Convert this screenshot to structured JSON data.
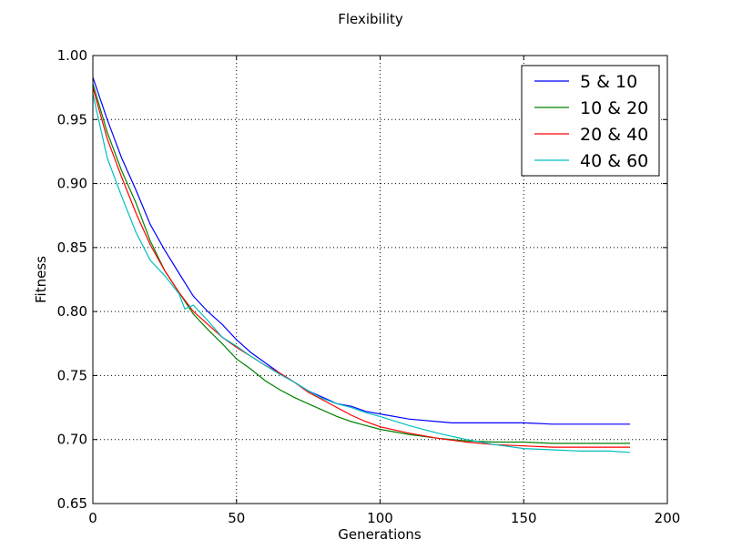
{
  "chart_data": {
    "type": "line",
    "title": "Flexibility",
    "xlabel": "Generations",
    "ylabel": "Fitness",
    "xlim": [
      0,
      200
    ],
    "ylim": [
      0.65,
      1.0
    ],
    "xticks": [
      0,
      50,
      100,
      150,
      200
    ],
    "xtick_labels": [
      "0",
      "50",
      "100",
      "150",
      "200"
    ],
    "yticks": [
      0.65,
      0.7,
      0.75,
      0.8,
      0.85,
      0.9,
      0.95,
      1.0
    ],
    "ytick_labels": [
      "0.65",
      "0.70",
      "0.75",
      "0.80",
      "0.85",
      "0.90",
      "0.95",
      "1.00"
    ],
    "grid": true,
    "legend_position": "upper right",
    "series": [
      {
        "name": "5 & 10",
        "color": "#0000ff",
        "x": [
          0,
          5,
          10,
          15,
          20,
          25,
          30,
          35,
          40,
          45,
          50,
          55,
          60,
          65,
          70,
          75,
          80,
          85,
          90,
          95,
          100,
          110,
          120,
          125,
          130,
          140,
          150,
          160,
          170,
          180,
          187
        ],
        "y": [
          0.983,
          0.95,
          0.92,
          0.895,
          0.868,
          0.848,
          0.83,
          0.812,
          0.8,
          0.79,
          0.778,
          0.768,
          0.76,
          0.752,
          0.745,
          0.738,
          0.733,
          0.728,
          0.726,
          0.722,
          0.72,
          0.716,
          0.714,
          0.713,
          0.713,
          0.713,
          0.713,
          0.712,
          0.712,
          0.712,
          0.712
        ]
      },
      {
        "name": "10 & 20",
        "color": "#008000",
        "x": [
          0,
          5,
          10,
          15,
          20,
          25,
          30,
          35,
          40,
          45,
          50,
          55,
          60,
          65,
          70,
          75,
          80,
          85,
          90,
          95,
          100,
          110,
          120,
          130,
          140,
          150,
          160,
          170,
          180,
          187
        ],
        "y": [
          0.978,
          0.94,
          0.91,
          0.885,
          0.855,
          0.832,
          0.815,
          0.798,
          0.786,
          0.775,
          0.763,
          0.755,
          0.746,
          0.739,
          0.733,
          0.728,
          0.723,
          0.718,
          0.714,
          0.711,
          0.708,
          0.704,
          0.701,
          0.699,
          0.698,
          0.698,
          0.697,
          0.697,
          0.697,
          0.697
        ]
      },
      {
        "name": "20 & 40",
        "color": "#ff0000",
        "x": [
          0,
          5,
          10,
          15,
          20,
          25,
          30,
          35,
          40,
          45,
          50,
          55,
          60,
          65,
          70,
          75,
          80,
          85,
          90,
          95,
          100,
          110,
          120,
          130,
          140,
          150,
          160,
          170,
          180,
          187
        ],
        "y": [
          0.975,
          0.935,
          0.905,
          0.877,
          0.852,
          0.832,
          0.815,
          0.8,
          0.79,
          0.78,
          0.772,
          0.765,
          0.758,
          0.752,
          0.745,
          0.737,
          0.731,
          0.725,
          0.719,
          0.714,
          0.71,
          0.705,
          0.701,
          0.698,
          0.696,
          0.695,
          0.694,
          0.694,
          0.694,
          0.694
        ]
      },
      {
        "name": "40 & 60",
        "color": "#00bfbf",
        "x": [
          0,
          5,
          10,
          15,
          20,
          25,
          30,
          32,
          35,
          40,
          45,
          50,
          55,
          60,
          65,
          70,
          75,
          80,
          85,
          90,
          95,
          100,
          110,
          120,
          130,
          140,
          150,
          160,
          170,
          180,
          187
        ],
        "y": [
          0.97,
          0.92,
          0.89,
          0.862,
          0.84,
          0.828,
          0.814,
          0.802,
          0.805,
          0.793,
          0.78,
          0.773,
          0.765,
          0.758,
          0.751,
          0.745,
          0.738,
          0.732,
          0.728,
          0.725,
          0.721,
          0.718,
          0.711,
          0.705,
          0.7,
          0.696,
          0.693,
          0.692,
          0.691,
          0.691,
          0.69
        ]
      }
    ]
  }
}
